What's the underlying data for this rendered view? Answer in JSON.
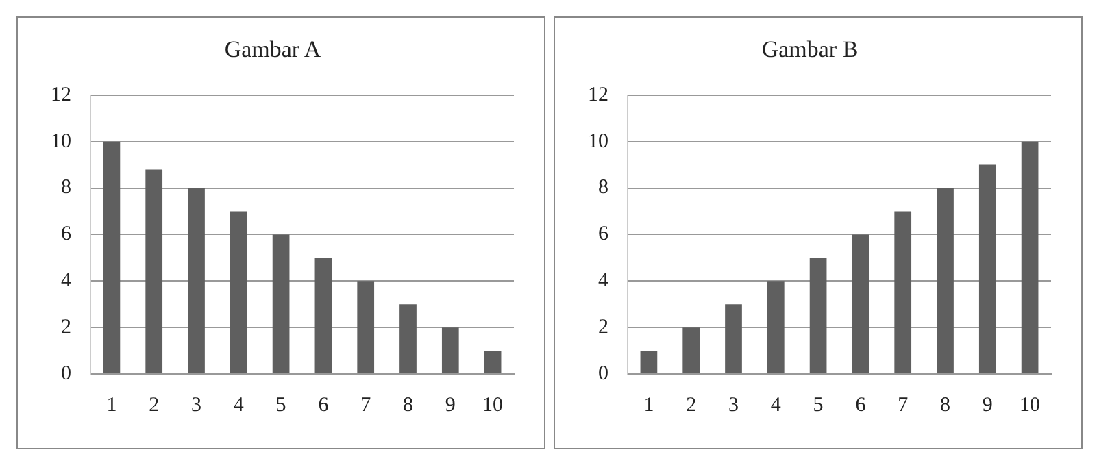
{
  "chart_data": [
    {
      "type": "bar",
      "title": "Gambar A",
      "categories": [
        "1",
        "2",
        "3",
        "4",
        "5",
        "6",
        "7",
        "8",
        "9",
        "10"
      ],
      "values": [
        10,
        8.8,
        8,
        7,
        6,
        5,
        4,
        3,
        2,
        1
      ],
      "color": "#5f5f5f",
      "ylim": [
        0,
        12
      ],
      "yticks": [
        0,
        2,
        4,
        6,
        8,
        10,
        12
      ],
      "grid": "y",
      "legend": false
    },
    {
      "type": "bar",
      "title": "Gambar B",
      "categories": [
        "1",
        "2",
        "3",
        "4",
        "5",
        "6",
        "7",
        "8",
        "9",
        "10"
      ],
      "values": [
        1,
        2,
        3,
        4,
        5,
        6,
        7,
        8,
        9,
        10
      ],
      "color": "#5f5f5f",
      "ylim": [
        0,
        12
      ],
      "yticks": [
        0,
        2,
        4,
        6,
        8,
        10,
        12
      ],
      "grid": "y",
      "legend": false
    }
  ]
}
